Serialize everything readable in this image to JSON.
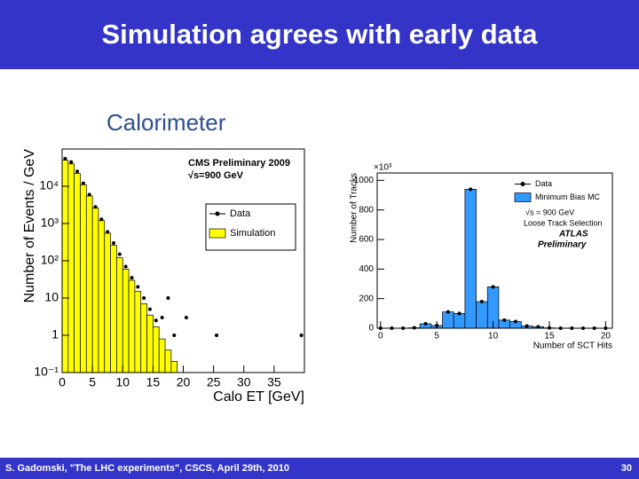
{
  "title": "Simulation agrees with early data",
  "section": "Calorimeter",
  "footer": {
    "left": "S. Gadomski, \"The LHC experiments\", CSCS, April 29th, 2010",
    "page": "30"
  },
  "chart_data": [
    {
      "type": "histogram",
      "log_y": true,
      "xlabel": "Calo ET [GeV]",
      "ylabel": "Number of Events / GeV",
      "annotations": [
        "CMS Preliminary 2009",
        "√s=900 GeV"
      ],
      "bins": [
        0,
        1,
        2,
        3,
        4,
        5,
        6,
        7,
        8,
        9,
        10,
        11,
        12,
        13,
        14,
        15,
        16,
        17,
        18,
        19,
        20,
        21,
        22,
        23,
        24,
        25,
        26,
        27,
        28,
        29,
        30,
        31,
        32,
        33,
        34,
        35,
        36,
        37,
        38,
        39,
        40
      ],
      "series": [
        {
          "name": "Data",
          "style": "points",
          "color": "#000000",
          "values": [
            55000,
            45000,
            25000,
            12000,
            6000,
            2800,
            1300,
            600,
            300,
            150,
            70,
            35,
            20,
            10,
            5,
            2.5,
            3,
            10,
            1,
            null,
            3,
            null,
            null,
            null,
            null,
            1,
            null,
            null,
            null,
            null,
            null,
            null,
            null,
            null,
            null,
            null,
            null,
            null,
            null,
            1
          ]
        },
        {
          "name": "Simulation",
          "style": "fill",
          "color": "#ffff00",
          "values": [
            50000,
            40000,
            22000,
            11000,
            5500,
            2600,
            1200,
            550,
            260,
            120,
            60,
            30,
            15,
            7,
            3.5,
            1.7,
            0.8,
            0.4,
            0.2,
            0.1,
            null,
            0.1,
            null,
            null,
            null,
            null,
            null,
            null,
            null,
            null,
            null,
            null,
            null,
            null,
            null,
            null,
            null,
            null,
            null,
            null
          ]
        }
      ],
      "xlim": [
        0,
        40
      ],
      "ylim": [
        0.1,
        100000
      ],
      "xticks": [
        0,
        5,
        10,
        15,
        20,
        25,
        30,
        35
      ],
      "yticks": [
        {
          "value": 0.1,
          "label": "10⁻¹"
        },
        1,
        10,
        {
          "value": 100,
          "label": "10²"
        },
        {
          "value": 1000,
          "label": "10³"
        },
        {
          "value": 10000,
          "label": "10⁴"
        }
      ]
    },
    {
      "type": "histogram",
      "log_y": false,
      "xlabel": "Number of SCT Hits",
      "ylabel": "Number of Tracks",
      "y_multiplier": "×10³",
      "annotations": [
        "√s = 900 GeV",
        "Loose Track Selection",
        "ATLAS",
        "Preliminary"
      ],
      "bins": [
        -0.5,
        0.5,
        1.5,
        2.5,
        3.5,
        4.5,
        5.5,
        6.5,
        7.5,
        8.5,
        9.5,
        10.5,
        11.5,
        12.5,
        13.5,
        14.5,
        15.5,
        16.5,
        17.5,
        18.5,
        19.5,
        20.5
      ],
      "series": [
        {
          "name": "Data",
          "style": "points",
          "color": "#000000",
          "values": [
            0,
            0,
            0,
            3,
            30,
            18,
            110,
            100,
            940,
            180,
            280,
            55,
            45,
            15,
            10,
            2,
            0,
            0,
            0,
            0,
            0
          ]
        },
        {
          "name": "Minimum Bias MC",
          "style": "fill",
          "color": "#3399ff",
          "values": [
            0,
            0,
            0,
            3,
            30,
            18,
            110,
            100,
            940,
            180,
            280,
            55,
            45,
            15,
            10,
            2,
            0,
            0,
            0,
            0,
            0
          ]
        }
      ],
      "xlim": [
        -0.3,
        20.6
      ],
      "ylim": [
        0,
        1050
      ],
      "xticks": [
        0,
        5,
        10,
        15,
        20
      ],
      "yticks": [
        0,
        200,
        400,
        600,
        800,
        1000
      ]
    }
  ]
}
